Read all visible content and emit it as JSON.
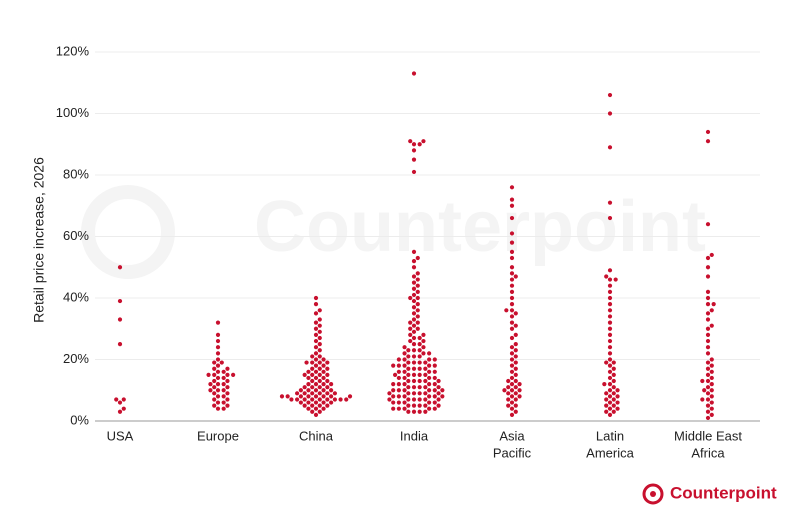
{
  "chart_data": {
    "type": "beeswarm",
    "watermark": "Counterpoint",
    "logo": "Counterpoint",
    "ylabel": "Retail price increase, 2026",
    "categories": [
      [
        "USA"
      ],
      [
        "Europe"
      ],
      [
        "China"
      ],
      [
        "India"
      ],
      [
        "Asia",
        "Pacific"
      ],
      [
        "Latin",
        "America"
      ],
      [
        "Middle East",
        "Africa"
      ]
    ],
    "color": "#c8102e",
    "ylim": [
      0,
      120
    ],
    "yticks": [
      {
        "value": 0,
        "label": "0%"
      },
      {
        "value": 20,
        "label": "20%"
      },
      {
        "value": 40,
        "label": "40%"
      },
      {
        "value": 60,
        "label": "60%"
      },
      {
        "value": 80,
        "label": "80%"
      },
      {
        "value": 100,
        "label": "100%"
      },
      {
        "value": 120,
        "label": "120%"
      }
    ],
    "grid": true,
    "values": [
      [
        3,
        4,
        6,
        7,
        7,
        25,
        33,
        39,
        50
      ],
      [
        4,
        4,
        5,
        5,
        6,
        6,
        7,
        7,
        8,
        8,
        9,
        9,
        10,
        10,
        10,
        11,
        11,
        12,
        12,
        12,
        13,
        13,
        14,
        14,
        15,
        15,
        15,
        15,
        16,
        16,
        17,
        17,
        18,
        19,
        19,
        20,
        22,
        24,
        26,
        28,
        32
      ],
      [
        2,
        3,
        3,
        4,
        4,
        4,
        5,
        5,
        5,
        5,
        6,
        6,
        6,
        6,
        6,
        7,
        7,
        7,
        7,
        7,
        7,
        7,
        7,
        7,
        8,
        8,
        8,
        8,
        8,
        8,
        8,
        8,
        9,
        9,
        9,
        9,
        9,
        9,
        10,
        10,
        10,
        10,
        10,
        11,
        11,
        11,
        11,
        12,
        12,
        12,
        12,
        13,
        13,
        13,
        14,
        14,
        14,
        15,
        15,
        15,
        15,
        16,
        16,
        16,
        17,
        17,
        17,
        18,
        18,
        19,
        19,
        19,
        19,
        20,
        20,
        21,
        21,
        22,
        23,
        24,
        25,
        26,
        27,
        28,
        29,
        30,
        31,
        32,
        33,
        35,
        36,
        38,
        40
      ],
      [
        3,
        3,
        3,
        3,
        4,
        4,
        4,
        4,
        4,
        5,
        5,
        5,
        5,
        5,
        6,
        6,
        6,
        6,
        6,
        7,
        7,
        7,
        7,
        7,
        7,
        8,
        8,
        8,
        8,
        8,
        8,
        9,
        9,
        9,
        9,
        9,
        9,
        10,
        10,
        10,
        10,
        10,
        10,
        11,
        11,
        11,
        11,
        11,
        12,
        12,
        12,
        12,
        12,
        13,
        13,
        13,
        13,
        13,
        14,
        14,
        14,
        14,
        15,
        15,
        15,
        15,
        15,
        16,
        16,
        16,
        16,
        17,
        17,
        17,
        17,
        18,
        18,
        18,
        18,
        18,
        19,
        19,
        19,
        19,
        20,
        20,
        20,
        20,
        21,
        21,
        21,
        22,
        22,
        22,
        23,
        23,
        23,
        24,
        24,
        25,
        25,
        26,
        26,
        27,
        27,
        28,
        28,
        29,
        30,
        30,
        31,
        32,
        32,
        33,
        34,
        35,
        36,
        37,
        38,
        39,
        40,
        40,
        41,
        42,
        43,
        44,
        45,
        46,
        47,
        48,
        50,
        52,
        53,
        55,
        81,
        85,
        88,
        90,
        90,
        91,
        91,
        113
      ],
      [
        2,
        3,
        4,
        5,
        5,
        6,
        7,
        7,
        8,
        8,
        9,
        9,
        10,
        10,
        10,
        11,
        11,
        12,
        12,
        13,
        13,
        14,
        15,
        16,
        17,
        18,
        19,
        20,
        21,
        22,
        23,
        24,
        25,
        27,
        28,
        30,
        31,
        32,
        34,
        35,
        36,
        36,
        38,
        40,
        42,
        44,
        46,
        47,
        48,
        50,
        53,
        55,
        58,
        61,
        66,
        70,
        72,
        76
      ],
      [
        2,
        3,
        3,
        4,
        4,
        5,
        5,
        6,
        6,
        7,
        7,
        8,
        8,
        9,
        9,
        10,
        10,
        11,
        12,
        12,
        13,
        14,
        15,
        16,
        17,
        18,
        19,
        19,
        20,
        22,
        24,
        26,
        28,
        30,
        32,
        34,
        36,
        38,
        40,
        42,
        44,
        46,
        46,
        47,
        49,
        66,
        71,
        89,
        100,
        106
      ],
      [
        1,
        2,
        3,
        4,
        5,
        6,
        7,
        7,
        8,
        9,
        10,
        10,
        11,
        12,
        13,
        13,
        14,
        15,
        16,
        17,
        18,
        19,
        20,
        22,
        24,
        26,
        28,
        30,
        31,
        33,
        35,
        36,
        38,
        38,
        40,
        42,
        47,
        50,
        53,
        54,
        64,
        91,
        94
      ]
    ]
  }
}
